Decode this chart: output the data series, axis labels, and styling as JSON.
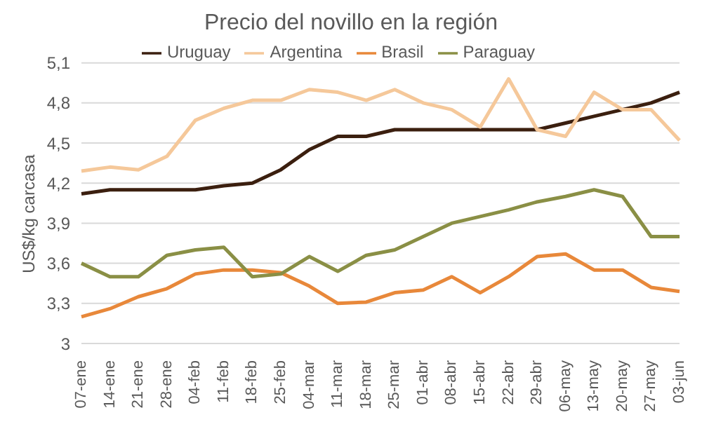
{
  "chart_data": {
    "type": "line",
    "title": "Precio del novillo en la región",
    "ylabel": "US$/kg carcasa",
    "categories": [
      "07-ene",
      "14-ene",
      "21-ene",
      "28-ene",
      "04-feb",
      "11-feb",
      "18-feb",
      "25-feb",
      "04-mar",
      "11-mar",
      "18-mar",
      "25-mar",
      "01-abr",
      "08-abr",
      "15-abr",
      "22-abr",
      "29-abr",
      "06-may",
      "13-may",
      "20-may",
      "27-may",
      "03-jun"
    ],
    "series": [
      {
        "name": "Uruguay",
        "color": "#3b1f0f",
        "values": [
          4.12,
          4.15,
          4.15,
          4.15,
          4.15,
          4.18,
          4.2,
          4.3,
          4.45,
          4.55,
          4.55,
          4.6,
          4.6,
          4.6,
          4.6,
          4.6,
          4.6,
          4.65,
          4.7,
          4.75,
          4.8,
          4.88
        ]
      },
      {
        "name": "Argentina",
        "color": "#f5c89a",
        "values": [
          4.29,
          4.32,
          4.3,
          4.4,
          4.67,
          4.76,
          4.82,
          4.82,
          4.9,
          4.88,
          4.82,
          4.9,
          4.8,
          4.75,
          4.62,
          4.98,
          4.6,
          4.55,
          4.88,
          4.75,
          4.75,
          4.52
        ]
      },
      {
        "name": "Brasil",
        "color": "#e8883a",
        "values": [
          3.2,
          3.26,
          3.35,
          3.41,
          3.52,
          3.55,
          3.55,
          3.53,
          3.43,
          3.3,
          3.31,
          3.38,
          3.4,
          3.5,
          3.38,
          3.5,
          3.65,
          3.67,
          3.55,
          3.55,
          3.42,
          3.39
        ]
      },
      {
        "name": "Paraguay",
        "color": "#8a8f45",
        "values": [
          3.6,
          3.5,
          3.5,
          3.66,
          3.7,
          3.72,
          3.5,
          3.52,
          3.65,
          3.54,
          3.66,
          3.7,
          3.8,
          3.9,
          3.95,
          4.0,
          4.06,
          4.1,
          4.15,
          4.1,
          3.8,
          3.8
        ]
      }
    ],
    "ylim": [
      3,
      5.1
    ],
    "yticks": [
      {
        "value": 3,
        "label": "3"
      },
      {
        "value": 3.3,
        "label": "3,3"
      },
      {
        "value": 3.6,
        "label": "3,6"
      },
      {
        "value": 3.9,
        "label": "3,9"
      },
      {
        "value": 4.2,
        "label": "4,2"
      },
      {
        "value": 4.5,
        "label": "4,5"
      },
      {
        "value": 4.8,
        "label": "4,8"
      },
      {
        "value": 5.1,
        "label": "5,1"
      }
    ],
    "grid": "y",
    "legend": "top",
    "marker": "none",
    "line_style": "solid"
  }
}
